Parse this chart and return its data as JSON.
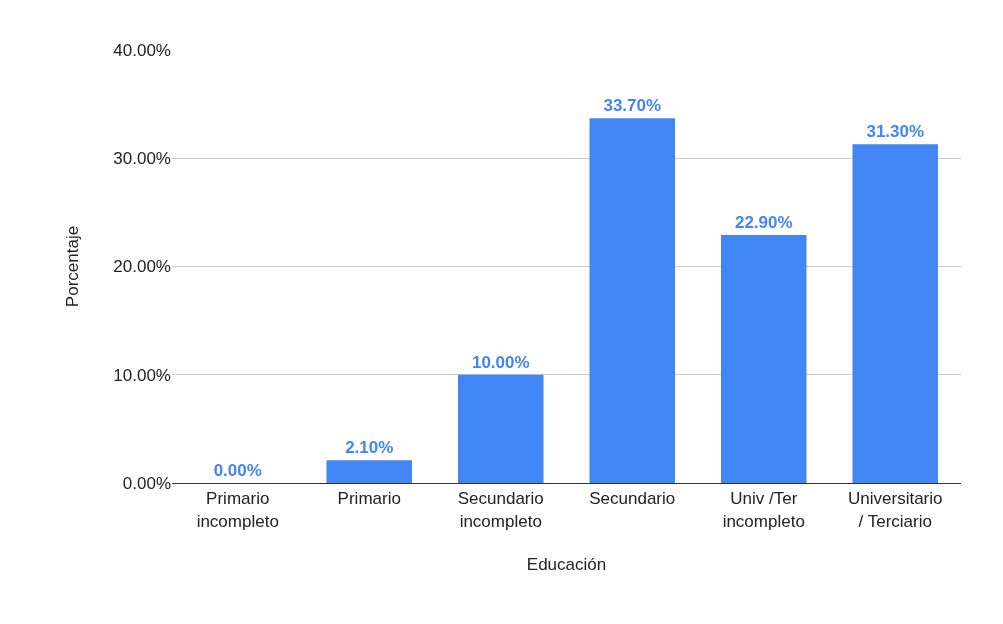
{
  "chart_data": {
    "type": "bar",
    "xlabel": "Educación",
    "ylabel": "Porcentaje",
    "categories": [
      "Primario incompleto",
      "Primario",
      "Secundario incompleto",
      "Secundario",
      "Univ /Ter incompleto",
      "Universitario / Terciario"
    ],
    "values": [
      0,
      2.1,
      10,
      33.7,
      22.9,
      31.3
    ],
    "value_labels": [
      "0.00%",
      "2.10%",
      "10.00%",
      "33.70%",
      "22.90%",
      "31.30%"
    ],
    "color": "#4285f4",
    "ylim": [
      0,
      40
    ],
    "yticks": [
      {
        "value": 0,
        "label": "0.00%"
      },
      {
        "value": 10,
        "label": "10.00%"
      },
      {
        "value": 20,
        "label": "20.00%"
      },
      {
        "value": 30,
        "label": "30.00%"
      },
      {
        "value": 40,
        "label": "40.00%"
      }
    ],
    "grid": "y"
  }
}
